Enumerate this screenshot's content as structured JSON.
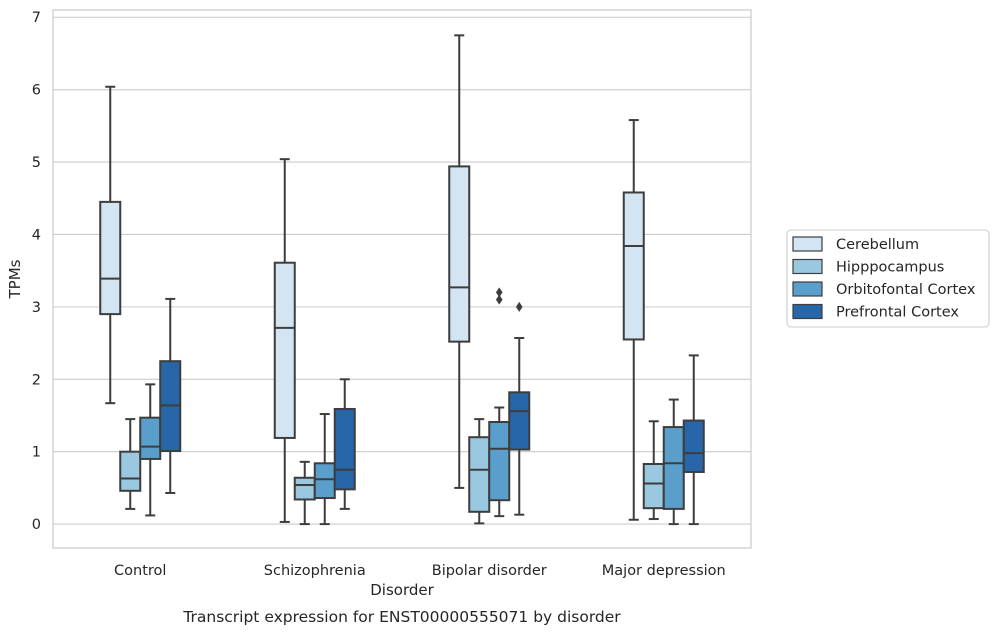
{
  "chart_data": {
    "type": "box",
    "title": "",
    "caption": "Transcript expression for ENST00000555071 by disorder",
    "xlabel": "Disorder",
    "ylabel": "TPMs",
    "ylim": [
      -0.33,
      7.1
    ],
    "yticks": [
      0,
      1,
      2,
      3,
      4,
      5,
      6,
      7
    ],
    "grid": "horizontal",
    "legend_position": "right",
    "categories": [
      "Control",
      "Schizophrenia",
      "Bipolar disorder",
      "Major depression"
    ],
    "series": [
      {
        "name": "Cerebellum",
        "color": "#d3e4f3",
        "boxes": [
          {
            "whisker_low": 1.67,
            "q1": 2.9,
            "median": 3.39,
            "q3": 4.45,
            "whisker_high": 6.04,
            "outliers": []
          },
          {
            "whisker_low": 0.03,
            "q1": 1.19,
            "median": 2.71,
            "q3": 3.61,
            "whisker_high": 5.04,
            "outliers": []
          },
          {
            "whisker_low": 0.5,
            "q1": 2.52,
            "median": 3.27,
            "q3": 4.94,
            "whisker_high": 6.75,
            "outliers": []
          },
          {
            "whisker_low": 0.06,
            "q1": 2.55,
            "median": 3.84,
            "q3": 4.58,
            "whisker_high": 5.58,
            "outliers": []
          }
        ]
      },
      {
        "name": "Hipppocampus",
        "color": "#9ac8e0",
        "boxes": [
          {
            "whisker_low": 0.21,
            "q1": 0.46,
            "median": 0.63,
            "q3": 1.0,
            "whisker_high": 1.45,
            "outliers": []
          },
          {
            "whisker_low": 0.0,
            "q1": 0.34,
            "median": 0.54,
            "q3": 0.64,
            "whisker_high": 0.86,
            "outliers": []
          },
          {
            "whisker_low": 0.01,
            "q1": 0.17,
            "median": 0.75,
            "q3": 1.2,
            "whisker_high": 1.45,
            "outliers": []
          },
          {
            "whisker_low": 0.07,
            "q1": 0.22,
            "median": 0.56,
            "q3": 0.83,
            "whisker_high": 1.42,
            "outliers": []
          }
        ]
      },
      {
        "name": "Orbitofontal Cortex",
        "color": "#5a9fcc",
        "boxes": [
          {
            "whisker_low": 0.12,
            "q1": 0.9,
            "median": 1.07,
            "q3": 1.47,
            "whisker_high": 1.93,
            "outliers": []
          },
          {
            "whisker_low": 0.0,
            "q1": 0.36,
            "median": 0.62,
            "q3": 0.84,
            "whisker_high": 1.52,
            "outliers": []
          },
          {
            "whisker_low": 0.11,
            "q1": 0.33,
            "median": 1.04,
            "q3": 1.41,
            "whisker_high": 1.61,
            "outliers": [
              3.1,
              3.2
            ]
          },
          {
            "whisker_low": 0.0,
            "q1": 0.21,
            "median": 0.84,
            "q3": 1.34,
            "whisker_high": 1.72,
            "outliers": []
          }
        ]
      },
      {
        "name": "Prefrontal Cortex",
        "color": "#2767a9",
        "boxes": [
          {
            "whisker_low": 0.43,
            "q1": 1.01,
            "median": 1.64,
            "q3": 2.25,
            "whisker_high": 3.11,
            "outliers": []
          },
          {
            "whisker_low": 0.21,
            "q1": 0.48,
            "median": 0.75,
            "q3": 1.59,
            "whisker_high": 2.0,
            "outliers": []
          },
          {
            "whisker_low": 0.13,
            "q1": 1.03,
            "median": 1.56,
            "q3": 1.82,
            "whisker_high": 2.57,
            "outliers": [
              3.0
            ]
          },
          {
            "whisker_low": 0.0,
            "q1": 0.72,
            "median": 0.98,
            "q3": 1.43,
            "whisker_high": 2.33,
            "outliers": []
          }
        ]
      }
    ]
  }
}
